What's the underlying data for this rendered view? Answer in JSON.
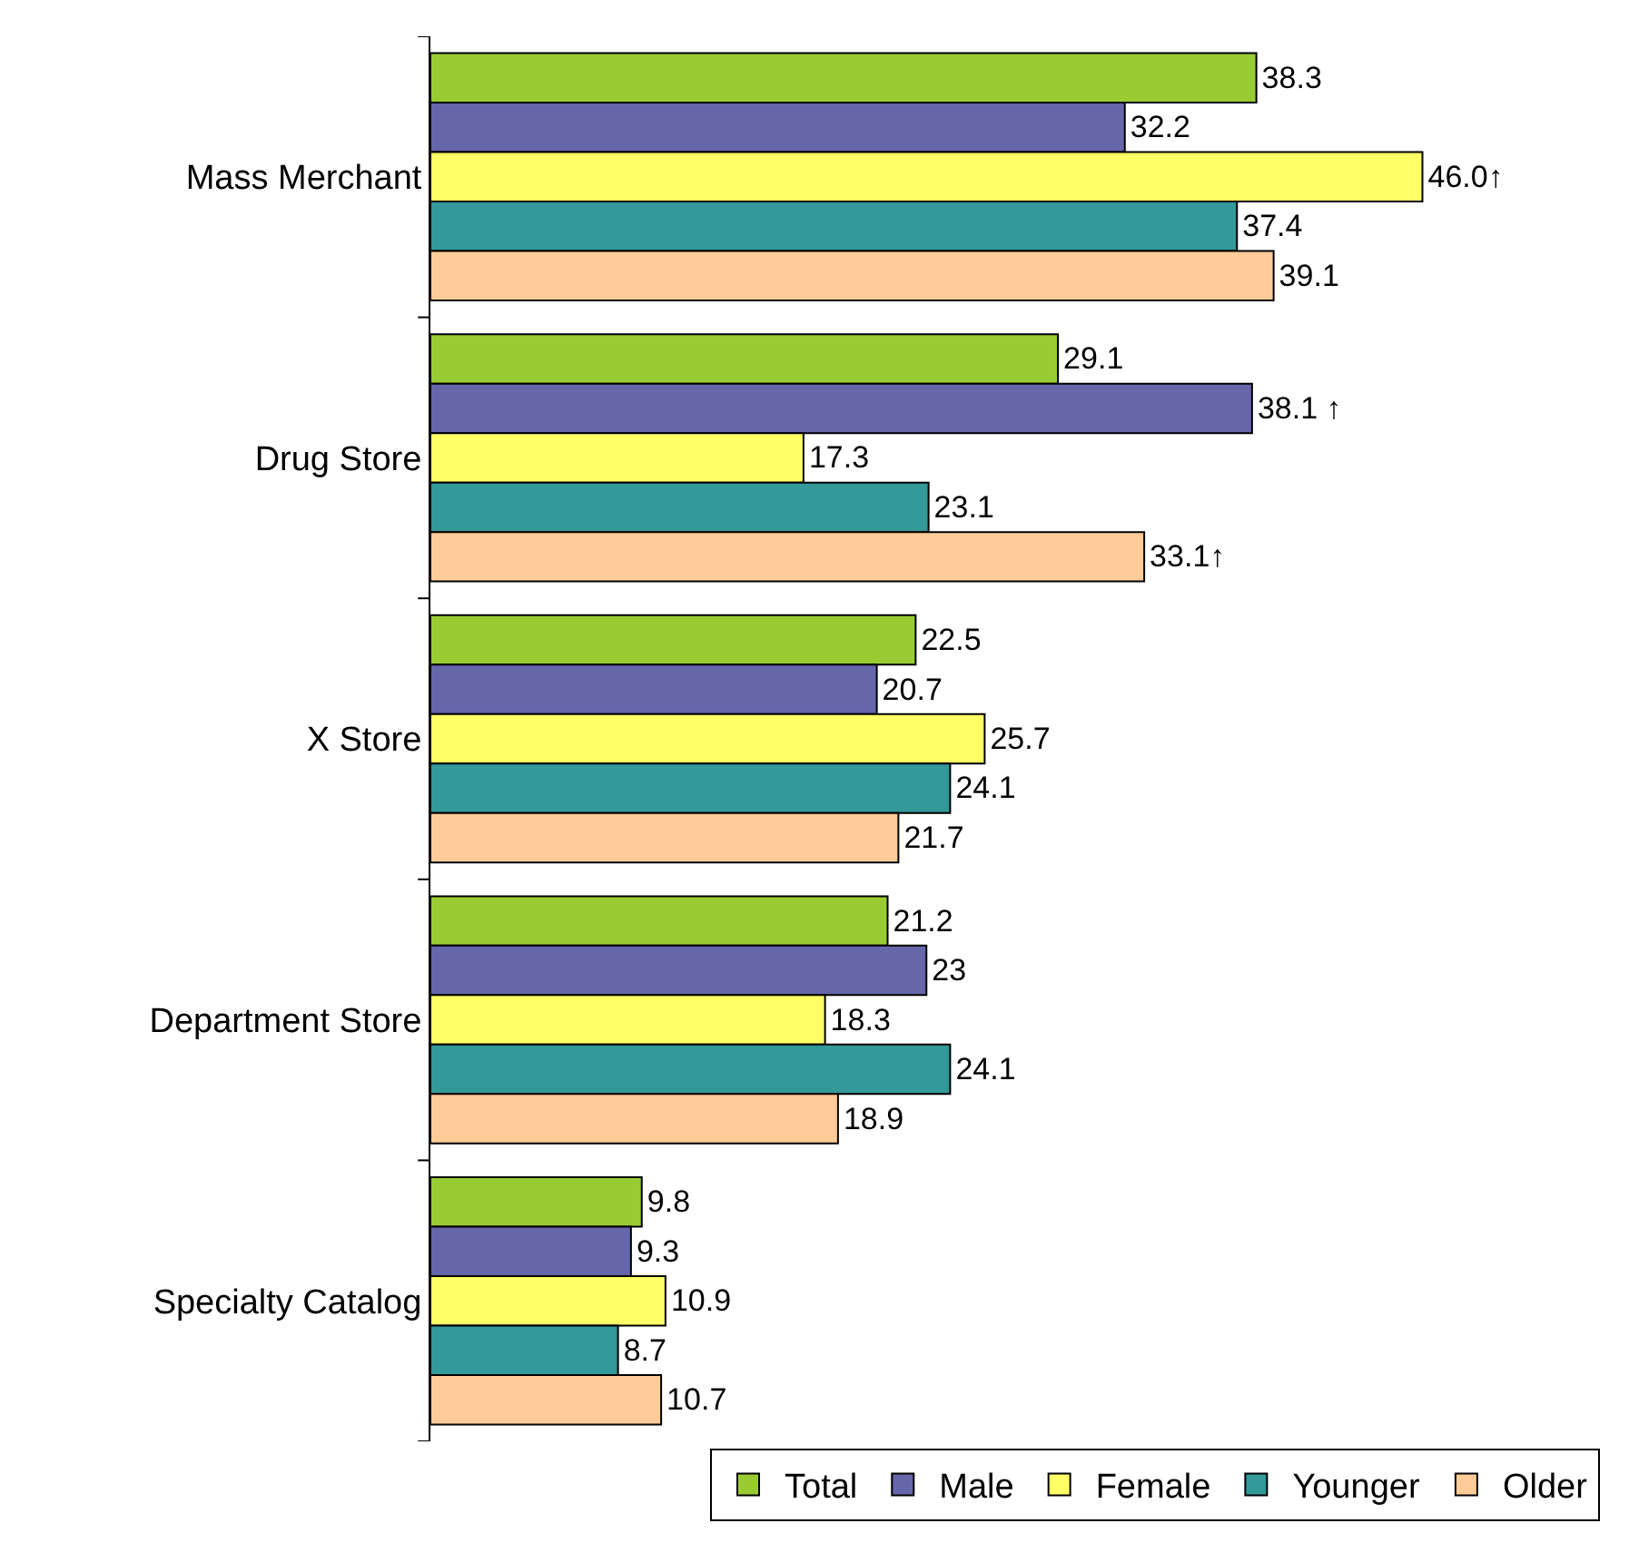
{
  "chart_data": {
    "type": "bar",
    "orientation": "horizontal",
    "categories": [
      "Mass Merchant",
      "Drug Store",
      "X Store",
      "Department Store",
      "Specialty Catalog"
    ],
    "series": [
      {
        "name": "Total",
        "color": "#99cc33",
        "values": [
          38.3,
          29.1,
          22.5,
          21.2,
          9.8
        ],
        "value_labels": [
          "38.3",
          "29.1",
          "22.5",
          "21.2",
          "9.8"
        ]
      },
      {
        "name": "Male",
        "color": "#6666aa",
        "values": [
          32.2,
          38.1,
          20.7,
          23,
          9.3
        ],
        "value_labels": [
          "32.2",
          "38.1 ↑",
          "20.7",
          "23",
          "9.3"
        ]
      },
      {
        "name": "Female",
        "color": "#ffff66",
        "values": [
          46.0,
          17.3,
          25.7,
          18.3,
          10.9
        ],
        "value_labels": [
          "46.0↑",
          "17.3",
          "25.7",
          "18.3",
          "10.9"
        ]
      },
      {
        "name": "Younger",
        "color": "#339999",
        "values": [
          37.4,
          23.1,
          24.1,
          24.1,
          8.7
        ],
        "value_labels": [
          "37.4",
          "23.1",
          "24.1",
          "24.1",
          "8.7"
        ]
      },
      {
        "name": "Older",
        "color": "#ffcc99",
        "values": [
          39.1,
          33.1,
          21.7,
          18.9,
          10.7
        ],
        "value_labels": [
          "39.1",
          "33.1↑",
          "21.7",
          "18.9",
          "10.7"
        ]
      }
    ],
    "legend": "bottom right"
  }
}
